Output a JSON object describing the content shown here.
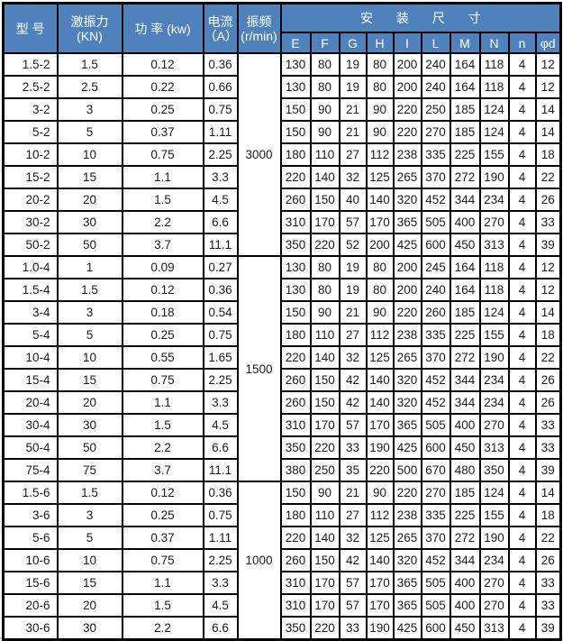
{
  "table": {
    "headers": {
      "model": "型 号",
      "force_line1": "激振力",
      "force_line2": "(KN)",
      "power": "功 率 (kw)",
      "current_line1": "电流",
      "current_line2": "（A）",
      "freq_line1": "振频",
      "freq_line2": "(r/min)",
      "install": "安 装 尺 寸"
    },
    "dim_headers": [
      "E",
      "F",
      "G",
      "H",
      "I",
      "L",
      "M",
      "N",
      "n",
      "φd"
    ],
    "groups": [
      {
        "freq": "3000",
        "rows": [
          {
            "model": "1.5-2",
            "force": "1.5",
            "power": "0.12",
            "current": "0.36",
            "dims": [
              130,
              80,
              19,
              80,
              200,
              240,
              164,
              118,
              4,
              12
            ]
          },
          {
            "model": "2.5-2",
            "force": "2.5",
            "power": "0.22",
            "current": "0.66",
            "dims": [
              130,
              80,
              19,
              80,
              200,
              240,
              164,
              118,
              4,
              12
            ]
          },
          {
            "model": "3-2",
            "force": "3",
            "power": "0.25",
            "current": "0.75",
            "dims": [
              150,
              90,
              21,
              90,
              220,
              250,
              185,
              124,
              4,
              14
            ]
          },
          {
            "model": "5-2",
            "force": "5",
            "power": "0.37",
            "current": "1.11",
            "dims": [
              150,
              90,
              21,
              90,
              220,
              270,
              185,
              124,
              4,
              14
            ]
          },
          {
            "model": "10-2",
            "force": "10",
            "power": "0.75",
            "current": "2.25",
            "dims": [
              180,
              110,
              27,
              112,
              238,
              335,
              225,
              155,
              4,
              18
            ]
          },
          {
            "model": "15-2",
            "force": "15",
            "power": "1.1",
            "current": "3.3",
            "dims": [
              220,
              140,
              32,
              125,
              265,
              370,
              272,
              190,
              4,
              22
            ]
          },
          {
            "model": "20-2",
            "force": "20",
            "power": "1.5",
            "current": "4.5",
            "dims": [
              260,
              150,
              40,
              140,
              320,
              452,
              344,
              234,
              4,
              26
            ]
          },
          {
            "model": "30-2",
            "force": "30",
            "power": "2.2",
            "current": "6.6",
            "dims": [
              310,
              170,
              57,
              170,
              365,
              505,
              400,
              270,
              4,
              33
            ]
          },
          {
            "model": "50-2",
            "force": "50",
            "power": "3.7",
            "current": "11.1",
            "dims": [
              350,
              220,
              52,
              200,
              425,
              600,
              450,
              313,
              4,
              39
            ]
          }
        ]
      },
      {
        "freq": "1500",
        "rows": [
          {
            "model": "1.0-4",
            "force": "1",
            "power": "0.09",
            "current": "0.27",
            "dims": [
              130,
              80,
              19,
              80,
              200,
              245,
              164,
              118,
              4,
              12
            ]
          },
          {
            "model": "1.5-4",
            "force": "1.5",
            "power": "0.12",
            "current": "0.36",
            "dims": [
              130,
              80,
              19,
              80,
              200,
              240,
              164,
              118,
              4,
              12
            ]
          },
          {
            "model": "3-4",
            "force": "3",
            "power": "0.18",
            "current": "0.54",
            "dims": [
              150,
              90,
              21,
              90,
              220,
              260,
              185,
              124,
              4,
              14
            ]
          },
          {
            "model": "5-4",
            "force": "5",
            "power": "0.25",
            "current": "0.75",
            "dims": [
              180,
              110,
              27,
              112,
              238,
              335,
              225,
              155,
              4,
              18
            ]
          },
          {
            "model": "10-4",
            "force": "10",
            "power": "0.55",
            "current": "1.65",
            "dims": [
              220,
              140,
              32,
              125,
              265,
              370,
              272,
              190,
              4,
              22
            ]
          },
          {
            "model": "15-4",
            "force": "15",
            "power": "0.75",
            "current": "2.25",
            "dims": [
              260,
              150,
              42,
              140,
              320,
              452,
              344,
              234,
              4,
              26
            ]
          },
          {
            "model": "20-4",
            "force": "20",
            "power": "1.1",
            "current": "3.3",
            "dims": [
              260,
              150,
              42,
              140,
              320,
              452,
              344,
              234,
              4,
              26
            ]
          },
          {
            "model": "30-4",
            "force": "30",
            "power": "1.5",
            "current": "4.5",
            "dims": [
              310,
              170,
              57,
              170,
              365,
              505,
              400,
              270,
              4,
              33
            ]
          },
          {
            "model": "50-4",
            "force": "50",
            "power": "2.2",
            "current": "6.6",
            "dims": [
              350,
              220,
              33,
              190,
              425,
              600,
              450,
              313,
              4,
              33
            ]
          },
          {
            "model": "75-4",
            "force": "75",
            "power": "3.7",
            "current": "11.1",
            "dims": [
              380,
              250,
              35,
              220,
              500,
              670,
              480,
              350,
              4,
              39
            ]
          }
        ]
      },
      {
        "freq": "1000",
        "rows": [
          {
            "model": "1.5-6",
            "force": "1.5",
            "power": "0.12",
            "current": "0.36",
            "dims": [
              150,
              90,
              21,
              90,
              220,
              270,
              185,
              124,
              4,
              14
            ]
          },
          {
            "model": "3-6",
            "force": "3",
            "power": "0.25",
            "current": "0.75",
            "dims": [
              180,
              110,
              27,
              112,
              238,
              335,
              225,
              155,
              4,
              18
            ]
          },
          {
            "model": "5-6",
            "force": "5",
            "power": "0.37",
            "current": "1.11",
            "dims": [
              220,
              140,
              32,
              125,
              265,
              370,
              272,
              190,
              4,
              22
            ]
          },
          {
            "model": "10-6",
            "force": "10",
            "power": "0.75",
            "current": "2.25",
            "dims": [
              260,
              150,
              42,
              140,
              320,
              452,
              344,
              234,
              4,
              26
            ]
          },
          {
            "model": "15-6",
            "force": "15",
            "power": "1.1",
            "current": "3.3",
            "dims": [
              310,
              170,
              57,
              170,
              365,
              505,
              400,
              270,
              4,
              33
            ]
          },
          {
            "model": "20-6",
            "force": "20",
            "power": "1.5",
            "current": "4.5",
            "dims": [
              310,
              170,
              57,
              170,
              365,
              505,
              400,
              270,
              4,
              33
            ]
          },
          {
            "model": "30-6",
            "force": "30",
            "power": "2.2",
            "current": "6.6",
            "dims": [
              350,
              220,
              33,
              190,
              425,
              600,
              450,
              313,
              4,
              39
            ]
          }
        ]
      }
    ]
  },
  "colors": {
    "header_bg": "#4f81bd",
    "header_text": "#ffffff",
    "border": "#000000"
  }
}
